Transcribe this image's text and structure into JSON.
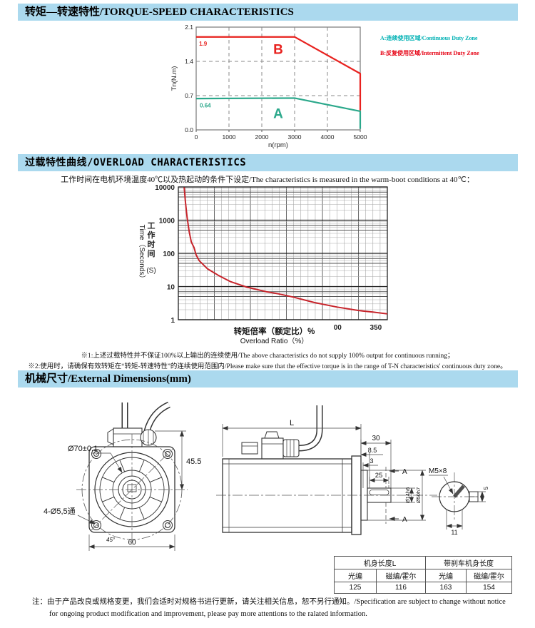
{
  "headers": {
    "torque_speed": "转矩—转速特性/TORQUE-SPEED CHARACTERISTICS",
    "overload": "过载特性曲线/OVERLOAD CHARACTERISTICS",
    "dimensions": "机械尺寸/External Dimensions(mm)"
  },
  "legend": [
    {
      "label": "A:连续使用区域/Continuous Duty Zone",
      "color": "#00b1b4"
    },
    {
      "label": "B:反复使用区域/Intermittent Duty Zone",
      "color": "#e60012"
    }
  ],
  "subtitle": "工作时间在电机环境温度40℃以及热起动的条件下设定/The characteristics is measured in the warm-boot conditions at 40℃：",
  "footnotes": [
    "※1:上述过载特性并不保证100%以上输出的连续使用/The above characteristics do not supply 100% output for continuous running；",
    "※2:使用时，请确保有效转矩在“转矩-转速特性”的连续使用范围内/Please make sure that the effective torque is in the range of T-N characteristics' continuous duty zone。"
  ],
  "chart_data": [
    {
      "type": "line",
      "title": "Torque-Speed Characteristics",
      "xlabel": "n(rpm)",
      "ylabel": "Tn(N.m)",
      "xlim": [
        0,
        5000
      ],
      "ylim": [
        0,
        2.1
      ],
      "xticks": [
        0,
        1000,
        2000,
        3000,
        4000,
        5000
      ],
      "yticks": [
        0,
        0.7,
        1.4,
        2.1
      ],
      "ytick_labels": [
        "0.0",
        "0.7",
        "1.4",
        "2.1"
      ],
      "grid": "dashed",
      "legend_position": "right",
      "series": [
        {
          "name": "B",
          "color": "#e8221f",
          "points": [
            [
              0,
              1.9
            ],
            [
              3000,
              1.9
            ],
            [
              5000,
              1.15
            ],
            [
              5000,
              0.4
            ]
          ]
        },
        {
          "name": "A",
          "color": "#2ba88b",
          "points": [
            [
              0,
              0.64
            ],
            [
              3000,
              0.65
            ],
            [
              5000,
              0.38
            ],
            [
              5000,
              0.02
            ]
          ]
        }
      ],
      "annotations": [
        {
          "text": "1.9",
          "x": 90,
          "y": 1.72,
          "color": "#e8221f",
          "size": 8,
          "anchor": "start"
        },
        {
          "text": "B",
          "x": 2500,
          "y": 1.55,
          "color": "#e8221f",
          "size": 19,
          "anchor": "middle"
        },
        {
          "text": "0.64",
          "x": 110,
          "y": 0.46,
          "color": "#2ba88b",
          "size": 8,
          "anchor": "start"
        },
        {
          "text": "A",
          "x": 2500,
          "y": 0.24,
          "color": "#2ba88b",
          "size": 19,
          "anchor": "middle"
        }
      ]
    },
    {
      "type": "line",
      "title": "Overload Characteristics",
      "yscale": "log",
      "ylim": [
        1,
        10000
      ],
      "ytick_values": [
        10000,
        1000,
        100,
        10,
        1
      ],
      "ytick_labels": [
        "10000",
        "1000",
        "100",
        "10",
        "1"
      ],
      "xtick_labels": [
        {
          "text": "00",
          "fx": 0.762
        },
        {
          "text": "350",
          "fx": 0.945
        }
      ],
      "xlabel_cn": "转矩倍率（额定比）%",
      "xlabel_en": "Overload Ratio（%）",
      "ylabel_en": "Time（Seconds）",
      "ylabel_cn": "工作时间",
      "ylabel_unit": "(S)",
      "grid": "on",
      "series": [
        {
          "name": "overload-curve",
          "color": "#c7242b",
          "points": [
            [
              0.028,
              9800
            ],
            [
              0.034,
              3500
            ],
            [
              0.042,
              1200
            ],
            [
              0.052,
              450
            ],
            [
              0.062,
              220
            ],
            [
              0.075,
              150
            ],
            [
              0.085,
              90
            ],
            [
              0.1,
              60
            ],
            [
              0.14,
              34
            ],
            [
              0.19,
              22
            ],
            [
              0.25,
              14
            ],
            [
              0.33,
              9.5
            ],
            [
              0.42,
              7
            ],
            [
              0.48,
              6
            ],
            [
              0.55,
              4.8
            ],
            [
              0.65,
              3.3
            ],
            [
              0.76,
              2.4
            ],
            [
              0.86,
              1.9
            ],
            [
              0.93,
              1.7
            ],
            [
              1.0,
              1.5
            ]
          ]
        }
      ]
    }
  ],
  "drawing": {
    "front": {
      "bolt_circle": "Ø70±0.1",
      "height": "45.5",
      "holes": "4-Ø5,5通",
      "width": "60",
      "angle": "45°"
    },
    "side": {
      "length": "L",
      "d30": "30",
      "d85": "8.5",
      "d3": "3",
      "d25": "25",
      "section": "A",
      "shaft_dia": "Ø14h6",
      "pilot_dia": "Ø50h7"
    },
    "end": {
      "tap": "M5×8",
      "d11": "11",
      "d5": "5"
    }
  },
  "table": {
    "groups": [
      "机身长度L",
      "带刹车机身长度"
    ],
    "sub_headers": [
      "光编",
      "磁编/霍尔",
      "光编",
      "磁编/霍尔"
    ],
    "values": [
      "125",
      "116",
      "163",
      "154"
    ]
  },
  "note": {
    "label": "注：",
    "line1": "由于产品改良或规格变更，我们会适时对规格书进行更新，请关注相关信息，恕不另行通知。/Specification are subject to change without notice",
    "line2": "for ongoing product modification and improvement, please pay more attentions to the ralated information."
  },
  "colors": {
    "header_bg": "#abd9ee",
    "curve_b_red": "#e8221f",
    "curve_a_green": "#2ba88b",
    "overload_red": "#c7242b",
    "legend_a": "#00b1b4",
    "legend_b": "#e60012"
  }
}
